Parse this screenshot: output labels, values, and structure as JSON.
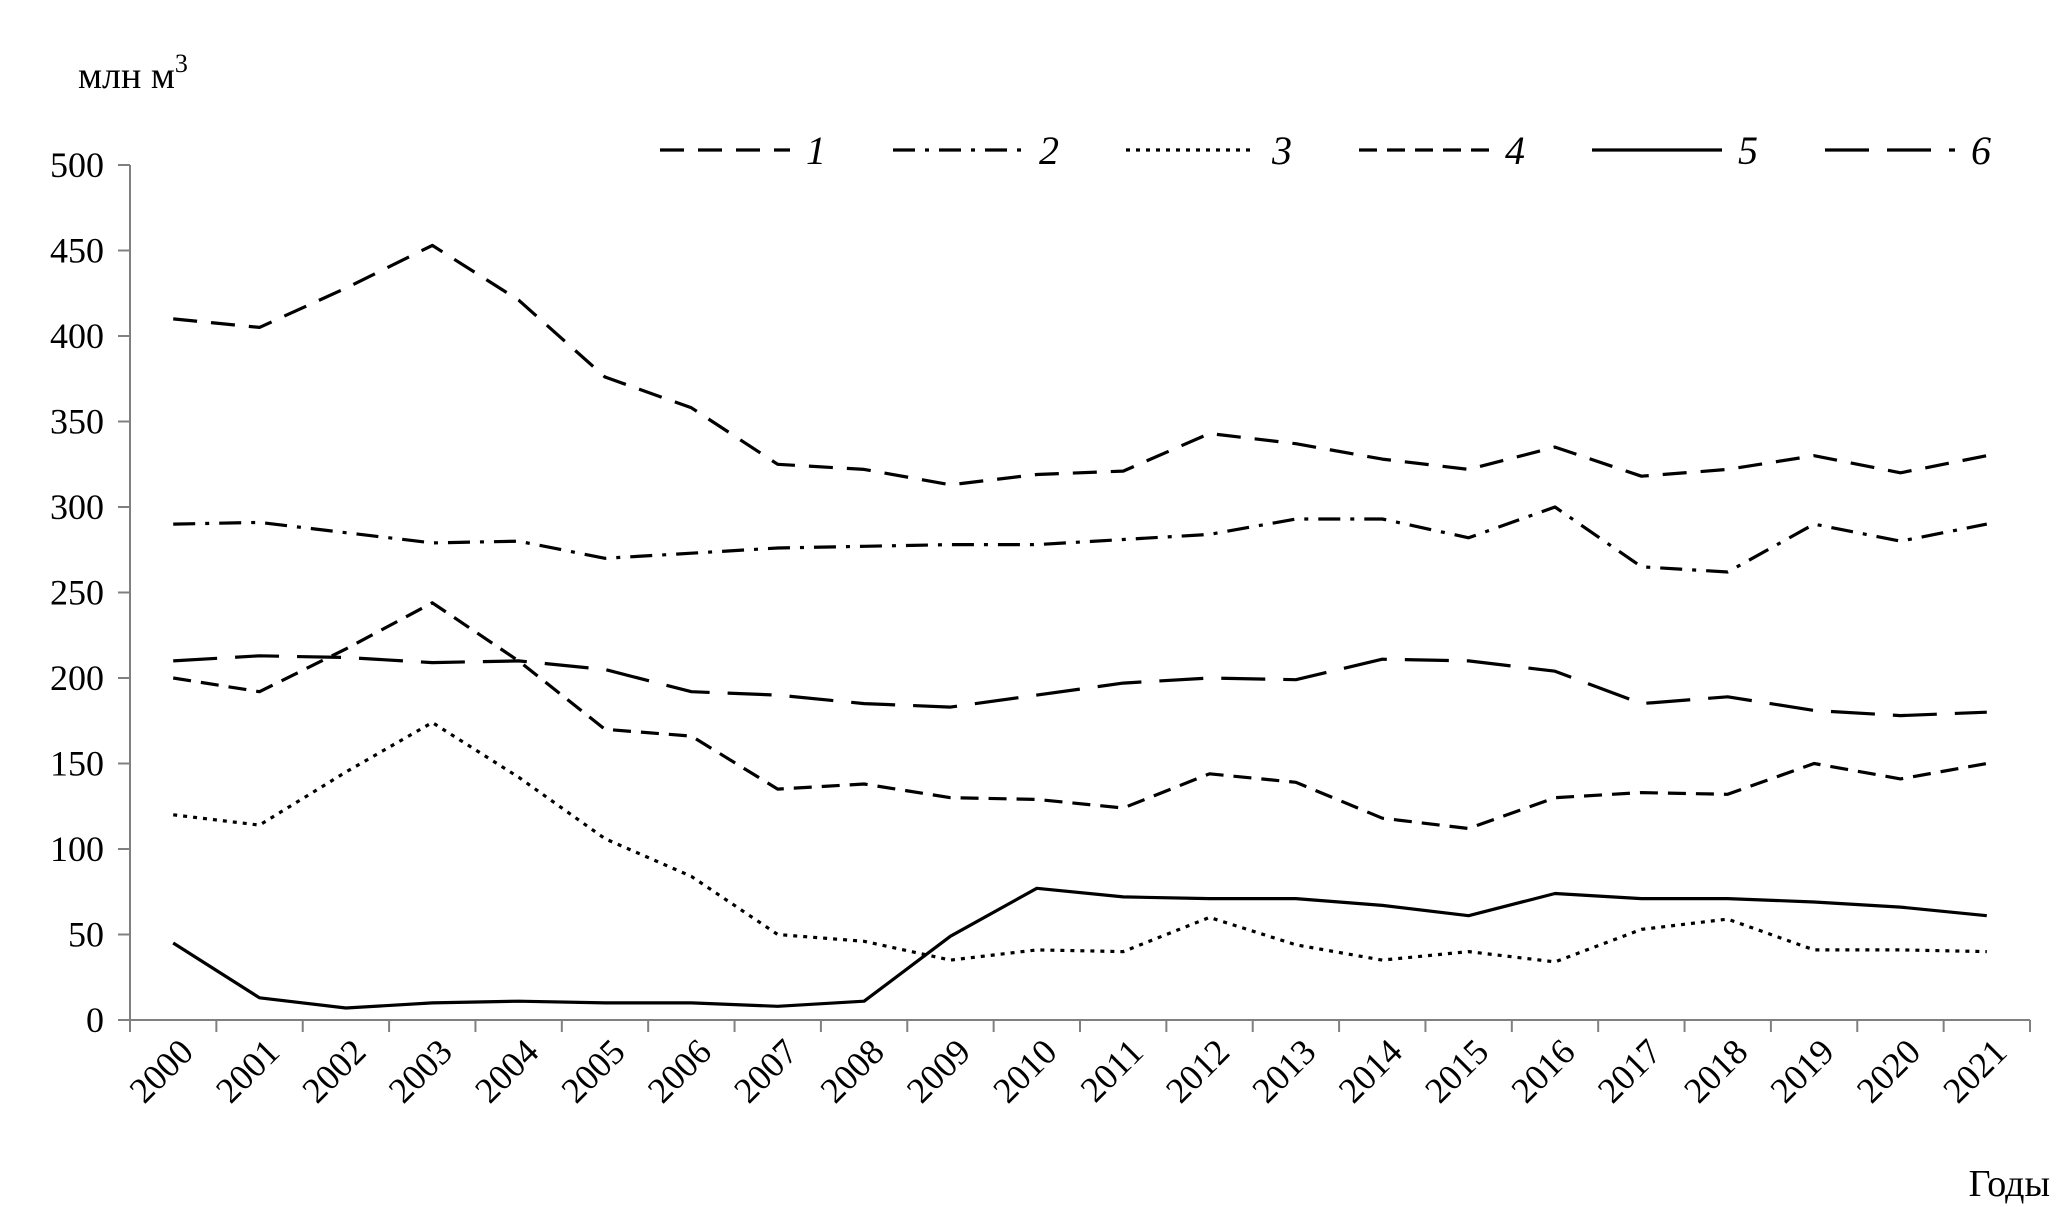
{
  "chart_data": {
    "type": "line",
    "ylabel": "млн м",
    "ylabel_sup": "3",
    "xlabel": "Годы",
    "ylim": [
      0,
      500
    ],
    "yticks": [
      0,
      50,
      100,
      150,
      200,
      250,
      300,
      350,
      400,
      450,
      500
    ],
    "grid": false,
    "legend_position": "top",
    "categories": [
      "2000",
      "2001",
      "2002",
      "2003",
      "2004",
      "2005",
      "2006",
      "2007",
      "2008",
      "2009",
      "2010",
      "2011",
      "2012",
      "2013",
      "2014",
      "2015",
      "2016",
      "2017",
      "2018",
      "2019",
      "2020",
      "2021"
    ],
    "series": [
      {
        "name": "1",
        "dash": "24 14",
        "values": [
          410,
          405,
          428,
          453,
          421,
          376,
          358,
          325,
          322,
          313,
          319,
          321,
          343,
          337,
          328,
          322,
          335,
          318,
          322,
          330,
          320,
          330
        ]
      },
      {
        "name": "2",
        "dash": "22 10 4 10",
        "values": [
          290,
          291,
          285,
          279,
          280,
          270,
          273,
          276,
          277,
          278,
          278,
          281,
          284,
          293,
          293,
          282,
          300,
          265,
          262,
          290,
          280,
          290
        ]
      },
      {
        "name": "3",
        "dash": "4 6",
        "values": [
          120,
          114,
          145,
          174,
          142,
          106,
          84,
          50,
          46,
          35,
          41,
          40,
          60,
          44,
          35,
          40,
          34,
          53,
          59,
          41,
          41,
          40
        ]
      },
      {
        "name": "4",
        "dash": "18 10",
        "values": [
          200,
          192,
          217,
          244,
          210,
          170,
          166,
          135,
          138,
          130,
          129,
          124,
          144,
          139,
          118,
          112,
          130,
          133,
          132,
          150,
          141,
          150
        ]
      },
      {
        "name": "5",
        "dash": "",
        "values": [
          45,
          13,
          7,
          10,
          11,
          10,
          10,
          8,
          11,
          49,
          77,
          72,
          71,
          71,
          67,
          61,
          74,
          71,
          71,
          69,
          66,
          61
        ]
      },
      {
        "name": "6",
        "dash": "44 18",
        "values": [
          210,
          213,
          212,
          209,
          210,
          205,
          192,
          190,
          185,
          183,
          190,
          197,
          200,
          199,
          211,
          210,
          204,
          185,
          189,
          181,
          178,
          180
        ]
      }
    ]
  }
}
